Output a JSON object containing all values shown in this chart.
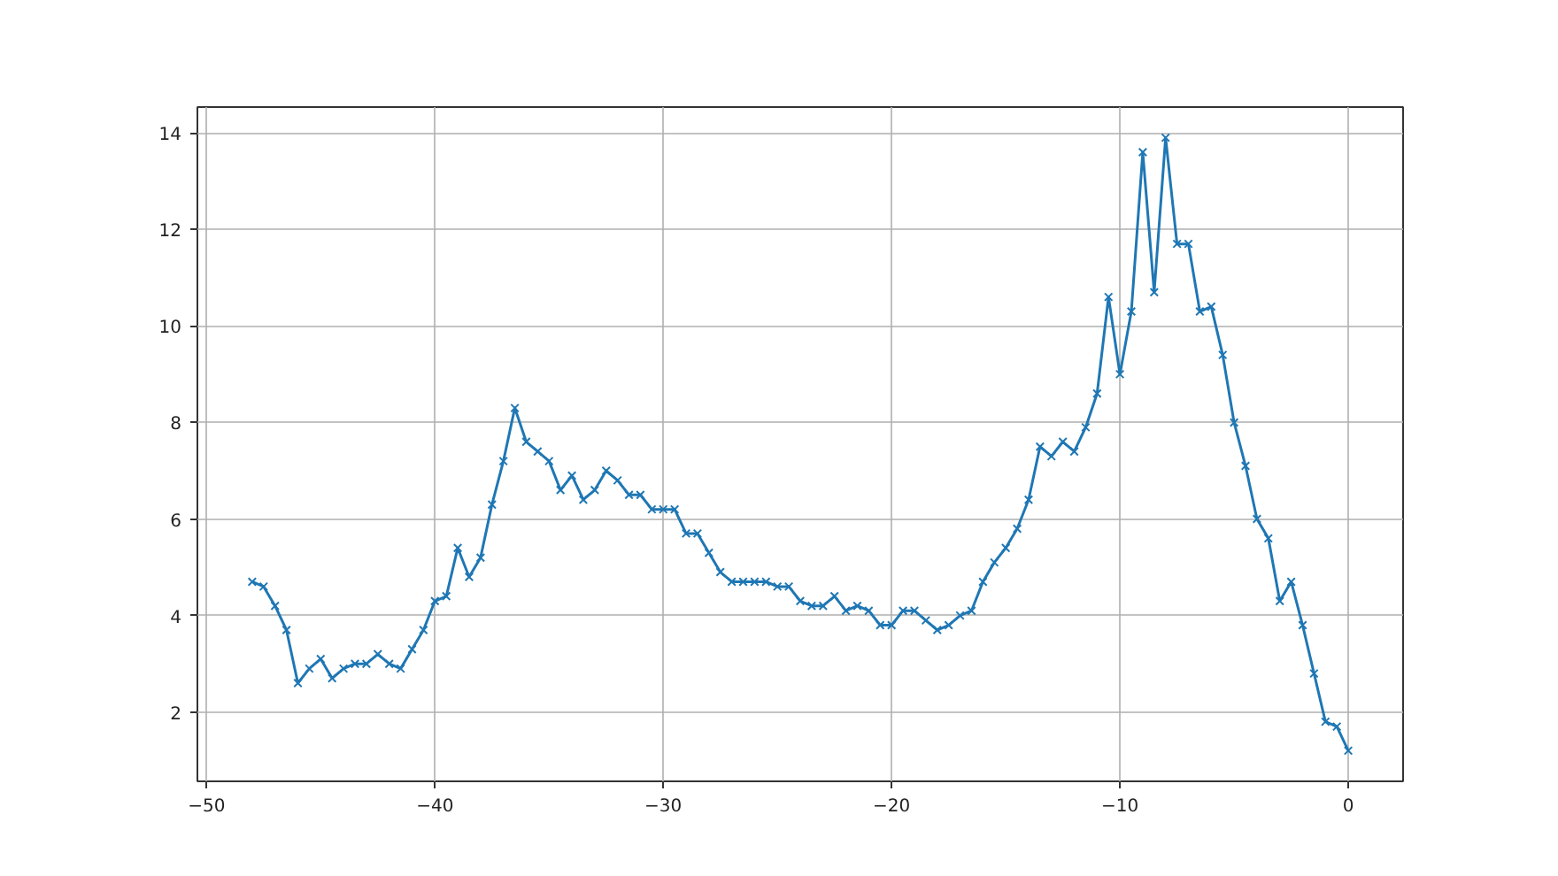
{
  "chart_data": {
    "type": "line",
    "x": [
      -48,
      -47.5,
      -47,
      -46.5,
      -46,
      -45.5,
      -45,
      -44.5,
      -44,
      -43.5,
      -43,
      -42.5,
      -42,
      -41.5,
      -41,
      -40.5,
      -40,
      -39.5,
      -39,
      -38.5,
      -38,
      -37.5,
      -37,
      -36.5,
      -36,
      -35.5,
      -35,
      -34.5,
      -34,
      -33.5,
      -33,
      -32.5,
      -32,
      -31.5,
      -31,
      -30.5,
      -30,
      -29.5,
      -29,
      -28.5,
      -28,
      -27.5,
      -27,
      -26.5,
      -26,
      -25.5,
      -25,
      -24.5,
      -24,
      -23.5,
      -23,
      -22.5,
      -22,
      -21.5,
      -21,
      -20.5,
      -20,
      -19.5,
      -19,
      -18.5,
      -18,
      -17.5,
      -17,
      -16.5,
      -16,
      -15.5,
      -15,
      -14.5,
      -14,
      -13.5,
      -13,
      -12.5,
      -12,
      -11.5,
      -11,
      -10.5,
      -10,
      -9.5,
      -9,
      -8.5,
      -8,
      -7.5,
      -7,
      -6.5,
      -6,
      -5.5,
      -5,
      -4.5,
      -4,
      -3.5,
      -3,
      -2.5,
      -2,
      -1.5,
      -1,
      -0.5,
      0
    ],
    "series": [
      {
        "color": "#1f77b4",
        "values": [
          4.7,
          4.6,
          4.2,
          3.7,
          2.6,
          2.9,
          3.1,
          2.7,
          2.9,
          3.0,
          3.0,
          3.2,
          3.0,
          2.9,
          3.3,
          3.7,
          4.3,
          4.4,
          5.4,
          4.8,
          5.2,
          6.3,
          7.2,
          8.3,
          7.6,
          7.4,
          7.2,
          6.6,
          6.9,
          6.4,
          6.6,
          7.0,
          6.8,
          6.5,
          6.5,
          6.2,
          6.2,
          6.2,
          5.7,
          5.7,
          5.3,
          4.9,
          4.7,
          4.7,
          4.7,
          4.7,
          4.6,
          4.6,
          4.3,
          4.2,
          4.2,
          4.4,
          4.1,
          4.2,
          4.1,
          3.8,
          3.8,
          4.1,
          4.1,
          3.9,
          3.7,
          3.8,
          4.0,
          4.1,
          4.7,
          5.1,
          5.4,
          5.8,
          6.4,
          7.5,
          7.3,
          7.6,
          7.4,
          7.9,
          8.6,
          10.6,
          9.0,
          10.3,
          13.6,
          10.7,
          13.9,
          11.7,
          11.7,
          10.3,
          10.4,
          9.4,
          8.0,
          7.1,
          6.0,
          5.6,
          4.3,
          4.7,
          3.8,
          2.8,
          1.8,
          1.7,
          1.2
        ]
      }
    ],
    "xlim": [
      -50.4,
      2.4
    ],
    "ylim": [
      0.565,
      14.535
    ],
    "xticks": [
      {
        "value": -50,
        "label": "−50"
      },
      {
        "value": -40,
        "label": "−40"
      },
      {
        "value": -30,
        "label": "−30"
      },
      {
        "value": -20,
        "label": "−20"
      },
      {
        "value": -10,
        "label": "−10"
      },
      0
    ],
    "yticks": [
      2,
      4,
      6,
      8,
      10,
      12,
      14
    ],
    "grid": true,
    "marker": "cross",
    "line_style": "solid"
  }
}
